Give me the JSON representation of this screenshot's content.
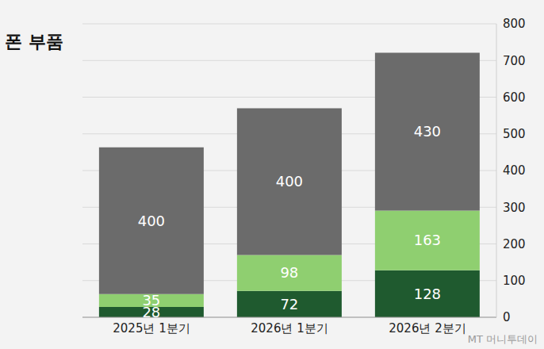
{
  "chart_data": {
    "type": "bar",
    "title": "폰 부품",
    "source": "MT 머니투데이",
    "categories": [
      "2025년 1분기",
      "2026년 1분기",
      "2026년 2분기"
    ],
    "series": [
      {
        "color": "#1f5a2f",
        "values": [
          28,
          72,
          128
        ]
      },
      {
        "color": "#8fcf70",
        "values": [
          35,
          98,
          163
        ]
      },
      {
        "color": "#6b6b6b",
        "values": [
          400,
          400,
          430
        ]
      }
    ],
    "stacked": true,
    "data_labels": true,
    "ylim": [
      0,
      800
    ],
    "yticks": [
      0,
      100,
      200,
      300,
      400,
      500,
      600,
      700,
      800
    ],
    "grid": true
  }
}
